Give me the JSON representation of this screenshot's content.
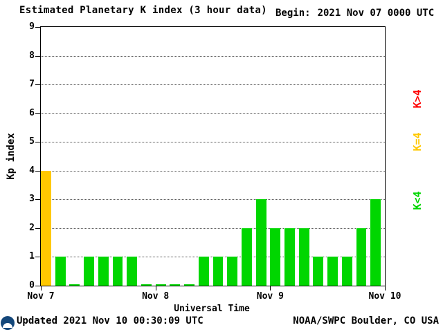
{
  "header": {
    "title": "Estimated Planetary K index (3 hour data)",
    "begin_label": "Begin:",
    "begin_value": "2021 Nov 07 0000 UTC"
  },
  "chart_data": {
    "type": "bar",
    "title": "Estimated Planetary K index (3 hour data)",
    "xlabel": "Universal Time",
    "ylabel": "Kp index",
    "ylim": [
      0,
      9
    ],
    "yticks": [
      0,
      1,
      2,
      3,
      4,
      5,
      6,
      7,
      8,
      9
    ],
    "x_day_labels": [
      "Nov 7",
      "Nov 8",
      "Nov 9",
      "Nov 10"
    ],
    "bars_per_day": 8,
    "interval_hours": 3,
    "values": [
      4,
      1,
      0,
      1,
      1,
      1,
      1,
      0,
      0,
      0,
      0,
      1,
      1,
      1,
      2,
      3,
      2,
      2,
      2,
      1,
      1,
      1,
      2,
      3
    ],
    "bar_colors": {
      "below4": "#00d600",
      "equal4": "#ffc800",
      "above4": "#ff0000"
    },
    "legend": [
      {
        "label": "K>4",
        "color": "#ff0000"
      },
      {
        "label": "K=4",
        "color": "#ffc800"
      },
      {
        "label": "K<4",
        "color": "#00d600"
      }
    ],
    "grid": {
      "horizontal": "dotted",
      "vertical": "none"
    }
  },
  "footer": {
    "updated": "Updated 2021 Nov 10 00:30:09 UTC",
    "credit": "NOAA/SWPC Boulder, CO USA",
    "logo": "noaa-logo"
  }
}
